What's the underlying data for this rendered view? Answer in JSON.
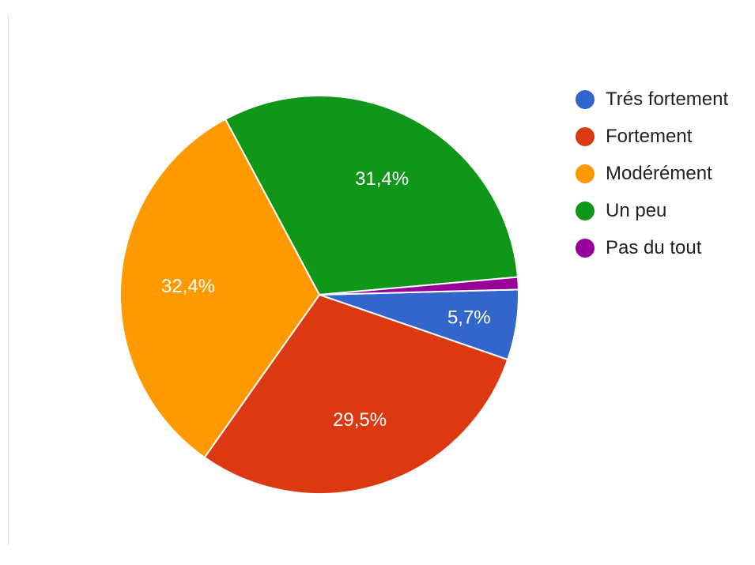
{
  "chart_data": {
    "type": "pie",
    "title": "",
    "slices": [
      {
        "label": "Trés fortement",
        "value": 5.7,
        "value_label": "5,7%",
        "color": "#3366cc"
      },
      {
        "label": "Fortement",
        "value": 29.5,
        "value_label": "29,5%",
        "color": "#dc3912"
      },
      {
        "label": "Modérément",
        "value": 32.4,
        "value_label": "32,4%",
        "color": "#ff9900"
      },
      {
        "label": "Un peu",
        "value": 31.4,
        "value_label": "31,4%",
        "color": "#109618"
      },
      {
        "label": "Pas du tout",
        "value": 1.0,
        "value_label": "",
        "color": "#990099"
      }
    ],
    "legend": {
      "position": "right"
    }
  }
}
